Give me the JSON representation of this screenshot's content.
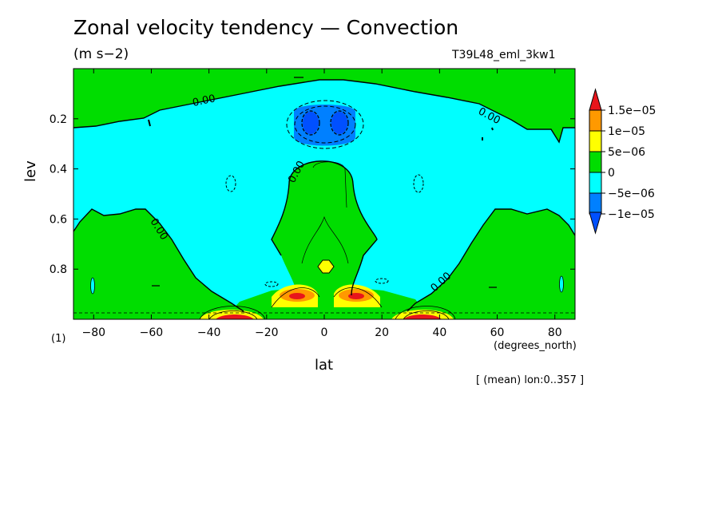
{
  "chart_data": {
    "type": "contour",
    "title": "Zonal velocity tendency — Convection",
    "units": "(m s−2)",
    "run_id": "T39L48_eml_3kw1",
    "xlabel": "lat",
    "xunits": "(degrees_north)",
    "ylabel": "lev",
    "yunits": "(1)",
    "averaging_note": "[ (mean) lon:0..357 ]",
    "xlim": [
      -87,
      87
    ],
    "ylim": [
      0.0,
      1.0
    ],
    "y_inverted": true,
    "x_ticks": [
      -80,
      -60,
      -40,
      -20,
      0,
      20,
      40,
      60,
      80
    ],
    "x_tick_labels": [
      "−80",
      "−60",
      "−40",
      "−20",
      "0",
      "20",
      "40",
      "60",
      "80"
    ],
    "y_ticks": [
      0.2,
      0.4,
      0.6,
      0.8
    ],
    "y_tick_labels": [
      "0.2",
      "0.4",
      "0.6",
      "0.8"
    ],
    "contour_label": "0.00",
    "colorbar": {
      "labels": [
        "1.5e−05",
        "1e−05",
        "5e−06",
        "0",
        "−5e−06",
        "−1e−05"
      ],
      "levels": [
        1.5e-05,
        1e-05,
        5e-06,
        0,
        -5e-06,
        -1e-05
      ],
      "colors": [
        "#e8151b",
        "#ff9900",
        "#ffff00",
        "#00dd00",
        "#00ffff",
        "#0080ff",
        "#0050ff"
      ]
    },
    "regions": [
      {
        "name": "stratosphere-positive",
        "value_range": [
          0,
          5e-06
        ],
        "color": "#00dd00",
        "lat_range": [
          -87,
          87
        ],
        "lev_range": [
          0.0,
          0.24
        ]
      },
      {
        "name": "upper-troposphere-negative",
        "value_range": [
          -5e-06,
          0
        ],
        "color": "#00ffff",
        "lat_range": [
          -87,
          87
        ],
        "lev_range": [
          0.2,
          0.85
        ]
      },
      {
        "name": "tropical-upper-minimum",
        "value_range": [
          -1.3e-05,
          -5e-06
        ],
        "color": "#0080ff",
        "lat_range": [
          -12,
          12
        ],
        "lev_range": [
          0.12,
          0.28
        ]
      },
      {
        "name": "tropical-column-positive",
        "value_range": [
          0,
          5e-06
        ],
        "color": "#00dd00",
        "lat_range": [
          -16,
          16
        ],
        "lev_range": [
          0.28,
          0.9
        ]
      },
      {
        "name": "high-latitude-positive-south",
        "value_range": [
          0,
          5e-06
        ],
        "color": "#00dd00",
        "lat_range": [
          -87,
          -42
        ],
        "lev_range": [
          0.55,
          1.0
        ]
      },
      {
        "name": "high-latitude-positive-north",
        "value_range": [
          0,
          5e-06
        ],
        "color": "#00dd00",
        "lat_range": [
          42,
          87
        ],
        "lev_range": [
          0.55,
          1.0
        ]
      },
      {
        "name": "near-surface-maxima",
        "value_range": [
          5e-06,
          1.6e-05
        ],
        "color": "#e8151b",
        "lat_range": [
          -40,
          40
        ],
        "lev_range": [
          0.88,
          1.0
        ]
      }
    ]
  }
}
